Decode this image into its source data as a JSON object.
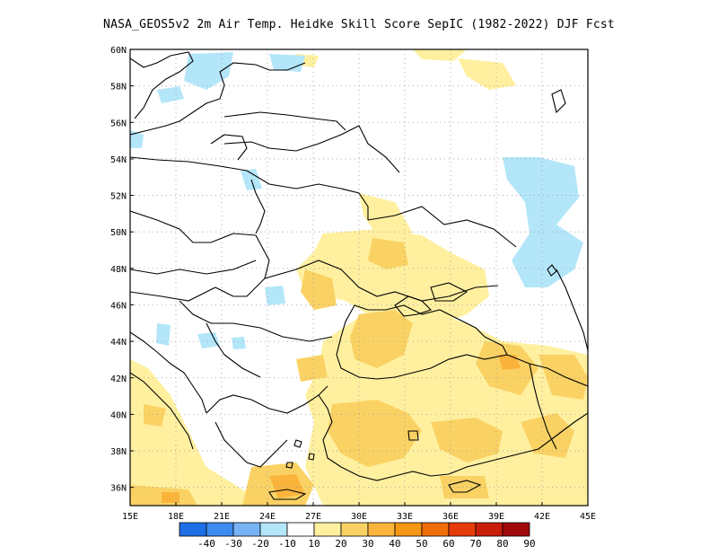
{
  "title": "NASA_GEOS5v2  2m Air Temp. Heidke Skill Score SepIC (1982-2022) DJF Fcst",
  "lat_labels": [
    "60N",
    "58N",
    "56N",
    "54N",
    "52N",
    "50N",
    "48N",
    "46N",
    "44N",
    "42N",
    "40N",
    "38N",
    "36N"
  ],
  "lon_labels": [
    "15E",
    "18E",
    "21E",
    "24E",
    "27E",
    "30E",
    "33E",
    "36E",
    "39E",
    "42E",
    "45E"
  ],
  "colorbar": {
    "labels": [
      "-40",
      "-30",
      "-20",
      "-10",
      "10",
      "20",
      "30",
      "40",
      "50",
      "60",
      "70",
      "80",
      "90"
    ],
    "colors": [
      "#1e6ee6",
      "#3c8cf0",
      "#78b4f5",
      "#b4e6fa",
      "#ffffff",
      "#fff0a0",
      "#fad264",
      "#fab43c",
      "#f59614",
      "#f06e0a",
      "#e63c0a",
      "#c81e0a",
      "#a00a0a"
    ]
  },
  "map": {
    "lon_range": [
      15,
      45
    ],
    "lat_range": [
      35,
      60
    ],
    "grid": true
  }
}
